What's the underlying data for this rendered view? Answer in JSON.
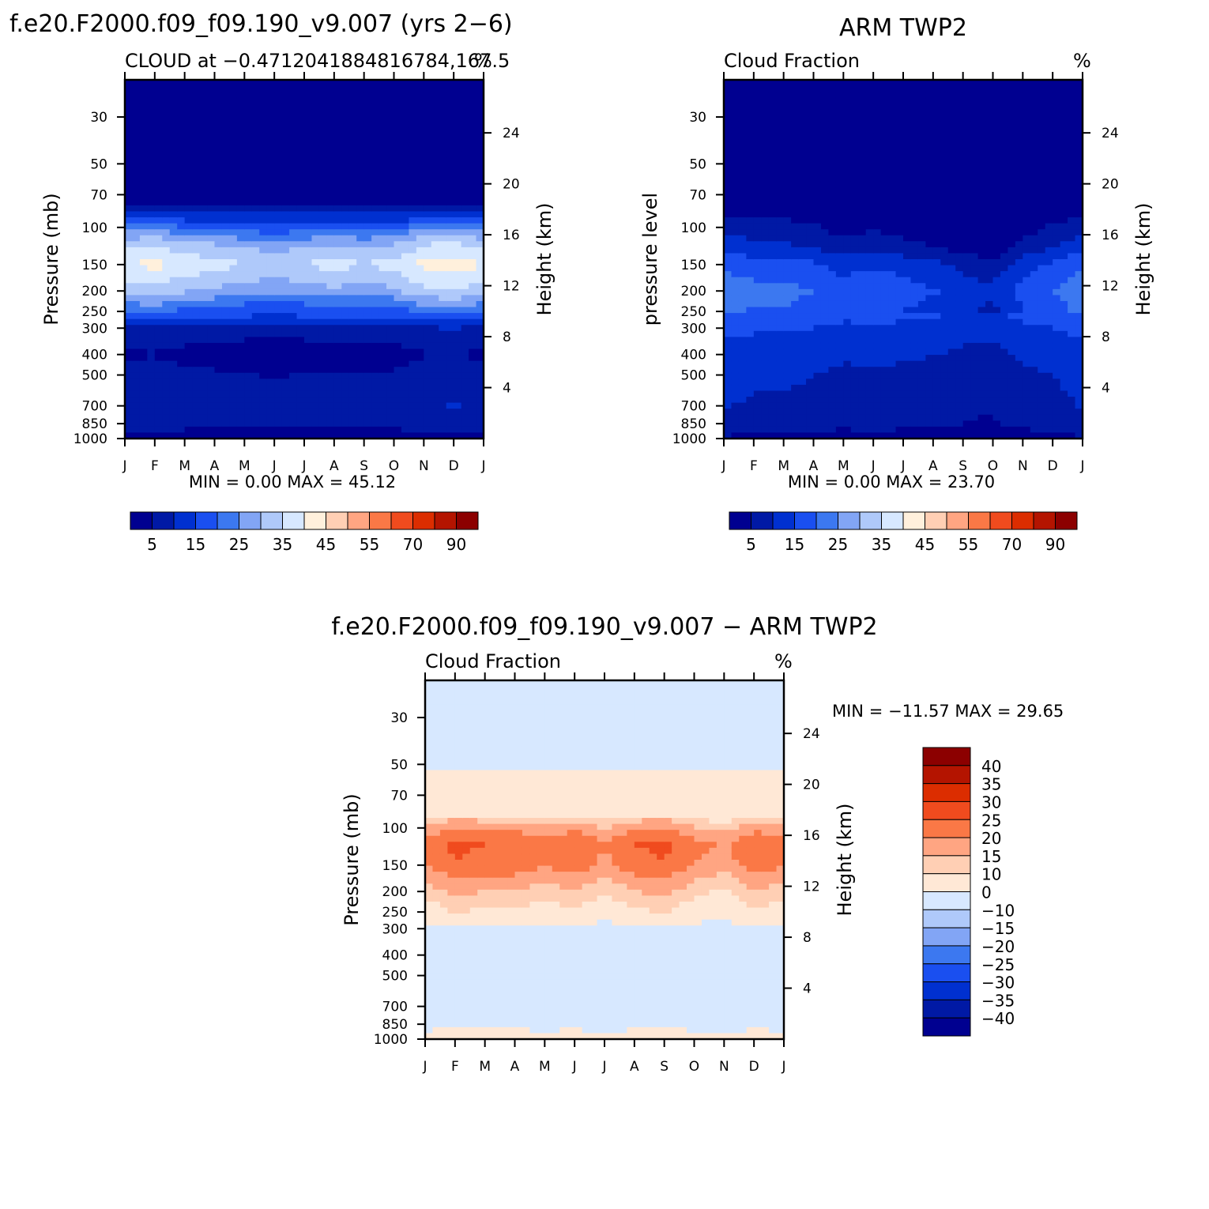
{
  "colors": {
    "cloud_palette": [
      "#000090",
      "#0019a5",
      "#0030d0",
      "#1a4ff0",
      "#3c78f0",
      "#82a5f5",
      "#afc9fa",
      "#d7e8ff",
      "#fff0dc",
      "#ffcfb4",
      "#ffa582",
      "#fa7846",
      "#f04b1e",
      "#dc2d00",
      "#b41400",
      "#8c0000"
    ],
    "diff_palette": [
      "#000090",
      "#0019a5",
      "#0030d0",
      "#1a4ff0",
      "#3c78f0",
      "#82a5f5",
      "#afc9fa",
      "#d7e8ff",
      "#ffe8d6",
      "#ffcfb4",
      "#ffa582",
      "#fa7846",
      "#f04b1e",
      "#dc2d00",
      "#b41400",
      "#8c0000"
    ]
  },
  "chart_data": [
    {
      "type": "heatmap",
      "id": "model",
      "title": "f.e20.F2000.f09_f09.190_v9.007 (yrs 2−6)",
      "left_string": "CLOUD at −0.4712041884816784,167.5",
      "right_string": "%",
      "ylabel": "Pressure (mb)",
      "ylabel_right": "Height (km)",
      "xticks": [
        "J",
        "F",
        "M",
        "A",
        "M",
        "J",
        "J",
        "A",
        "S",
        "O",
        "N",
        "D",
        "J"
      ],
      "yticks": [
        "30",
        "50",
        "70",
        "100",
        "150",
        "200",
        "250",
        "300",
        "400",
        "500",
        "700",
        "850",
        "1000"
      ],
      "ytick_values": [
        30,
        50,
        70,
        100,
        150,
        200,
        250,
        300,
        400,
        500,
        700,
        850,
        1000
      ],
      "right_ticks": [
        "24",
        "20",
        "16",
        "12",
        "8",
        "4"
      ],
      "right_tick_values": [
        24,
        20,
        16,
        12,
        8,
        4
      ],
      "stats": "MIN =     0.00 MAX =    45.12",
      "min": 0.0,
      "max": 45.12,
      "colorbar_levels": [
        "5",
        "15",
        "25",
        "35",
        "45",
        "55",
        "70",
        "90"
      ],
      "profile_pressure": [
        30,
        50,
        70,
        80,
        90,
        100,
        120,
        150,
        200,
        250,
        300,
        400,
        500,
        700,
        850,
        1000
      ],
      "profile_values": [
        0,
        0,
        0,
        5,
        14,
        22,
        33,
        40,
        32,
        20,
        9,
        4,
        7,
        9,
        8,
        2
      ],
      "month_shift": [
        0,
        1,
        -1,
        -2,
        -3,
        -4,
        -3,
        -2,
        -3,
        -2,
        1,
        2,
        0
      ]
    },
    {
      "type": "heatmap",
      "id": "obs",
      "title": "ARM TWP2",
      "left_string": "Cloud Fraction",
      "right_string": "%",
      "ylabel": "pressure level",
      "ylabel_right": "Height (km)",
      "xticks": [
        "J",
        "F",
        "M",
        "A",
        "M",
        "J",
        "J",
        "A",
        "S",
        "O",
        "N",
        "D",
        "J"
      ],
      "yticks": [
        "30",
        "50",
        "70",
        "100",
        "150",
        "200",
        "250",
        "300",
        "400",
        "500",
        "700",
        "850",
        "1000"
      ],
      "ytick_values": [
        30,
        50,
        70,
        100,
        150,
        200,
        250,
        300,
        400,
        500,
        700,
        850,
        1000
      ],
      "right_ticks": [
        "24",
        "20",
        "16",
        "12",
        "8",
        "4"
      ],
      "right_tick_values": [
        24,
        20,
        16,
        12,
        8,
        4
      ],
      "stats": "MIN =     0.00 MAX =    23.70",
      "min": 0.0,
      "max": 23.7,
      "colorbar_levels": [
        "5",
        "15",
        "25",
        "35",
        "45",
        "55",
        "70",
        "90"
      ],
      "profile_pressure": [
        30,
        50,
        70,
        90,
        100,
        120,
        150,
        200,
        250,
        300,
        400,
        500,
        700,
        850,
        1000
      ],
      "profile_values": [
        0,
        0,
        0,
        3,
        6,
        9,
        16,
        20,
        18,
        15,
        12,
        10,
        9,
        8,
        3
      ],
      "month_shift": [
        2,
        1,
        1,
        0,
        -2,
        -1,
        -2,
        -3,
        -5,
        -6,
        -2,
        0,
        2
      ]
    },
    {
      "type": "heatmap",
      "id": "diff",
      "title": "f.e20.F2000.f09_f09.190_v9.007 − ARM TWP2",
      "left_string": "Cloud Fraction",
      "right_string": "%",
      "ylabel": "Pressure (mb)",
      "ylabel_right": "Height (km)",
      "xticks": [
        "J",
        "F",
        "M",
        "A",
        "M",
        "J",
        "J",
        "A",
        "S",
        "O",
        "N",
        "D",
        "J"
      ],
      "yticks": [
        "30",
        "50",
        "70",
        "100",
        "150",
        "200",
        "250",
        "300",
        "400",
        "500",
        "700",
        "850",
        "1000"
      ],
      "ytick_values": [
        30,
        50,
        70,
        100,
        150,
        200,
        250,
        300,
        400,
        500,
        700,
        850,
        1000
      ],
      "right_ticks": [
        "24",
        "20",
        "16",
        "12",
        "8",
        "4"
      ],
      "right_tick_values": [
        24,
        20,
        16,
        12,
        8,
        4
      ],
      "stats": "MIN = −11.57 MAX =    29.65",
      "min": -11.57,
      "max": 29.65,
      "colorbar_levels": [
        "40",
        "35",
        "30",
        "25",
        "20",
        "15",
        "10",
        "0",
        "−10",
        "−15",
        "−20",
        "−25",
        "−30",
        "−35",
        "−40"
      ],
      "profile_pressure": [
        30,
        50,
        55,
        70,
        90,
        100,
        120,
        150,
        200,
        250,
        300,
        400,
        500,
        700,
        850,
        1000
      ],
      "profile_values": [
        -3,
        -3,
        2,
        4,
        10,
        16,
        22,
        20,
        12,
        6,
        -3,
        -4,
        -2,
        -2,
        -3,
        3
      ],
      "month_shift": [
        0,
        3,
        2,
        2,
        0,
        2,
        -1,
        2,
        3,
        0,
        -2,
        2,
        0
      ]
    }
  ]
}
